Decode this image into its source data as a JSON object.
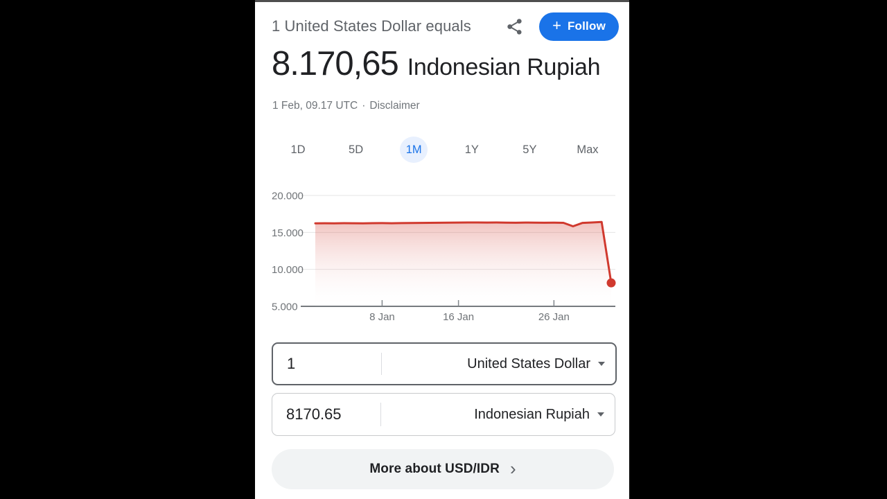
{
  "colors": {
    "accent_blue": "#1a73e8",
    "active_tab_bg": "#e8f0fe",
    "chart_red": "#d0392e",
    "gray_text": "#5f6368",
    "meta_gray": "#70757a"
  },
  "header": {
    "title": "1 United States Dollar equals",
    "follow_plus": "+",
    "follow_label": "Follow"
  },
  "conversion": {
    "amount": "8.170,65",
    "currency_name": "Indonesian Rupiah",
    "timestamp": "1 Feb, 09.17 UTC",
    "separator": "·",
    "disclaimer": "Disclaimer"
  },
  "range_tabs": [
    {
      "label": "1D",
      "active": false
    },
    {
      "label": "5D",
      "active": false
    },
    {
      "label": "1M",
      "active": true
    },
    {
      "label": "1Y",
      "active": false
    },
    {
      "label": "5Y",
      "active": false
    },
    {
      "label": "Max",
      "active": false
    }
  ],
  "chart_data": {
    "type": "area",
    "title": "USD to IDR exchange rate, 1 month",
    "x_unit": "days since 1 Jan (31 = 1 Feb)",
    "x": [
      0,
      1,
      2,
      3,
      4,
      5,
      6,
      7,
      8,
      9,
      10,
      11,
      12,
      13,
      14,
      15,
      16,
      17,
      18,
      19,
      20,
      21,
      22,
      23,
      24,
      25,
      26,
      27,
      28,
      29,
      30,
      31
    ],
    "values": [
      16230,
      16245,
      16230,
      16250,
      16240,
      16230,
      16250,
      16255,
      16240,
      16260,
      16270,
      16285,
      16295,
      16310,
      16320,
      16335,
      16340,
      16345,
      16330,
      16340,
      16325,
      16310,
      16330,
      16320,
      16310,
      16315,
      16300,
      15830,
      16290,
      16340,
      16420,
      8170.65
    ],
    "final_point": {
      "x_label": "1 Feb",
      "value": 8170.65
    },
    "xlim": [
      0,
      31
    ],
    "ylim": [
      5000,
      20000
    ],
    "y_ticks": [
      {
        "label": "20.000",
        "value": 20000
      },
      {
        "label": "15.000",
        "value": 15000
      },
      {
        "label": "10.000",
        "value": 10000
      },
      {
        "label": "5.000",
        "value": 5000
      }
    ],
    "x_ticks": [
      {
        "label": "8 Jan",
        "day": 7
      },
      {
        "label": "16 Jan",
        "day": 15
      },
      {
        "label": "26 Jan",
        "day": 25
      }
    ],
    "grid": true,
    "legend": false,
    "line_color": "#d0392e"
  },
  "converter": {
    "from": {
      "value": "1",
      "currency": "United States Dollar"
    },
    "to": {
      "value": "8170.65",
      "currency": "Indonesian Rupiah"
    }
  },
  "footer": {
    "more_label": "More about USD/IDR",
    "chevron": "›"
  }
}
